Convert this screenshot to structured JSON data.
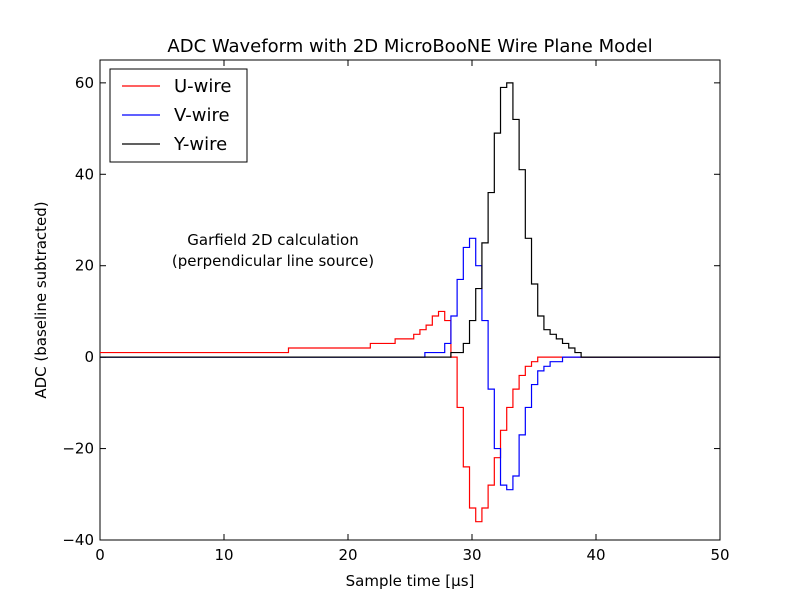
{
  "chart_data": {
    "type": "line",
    "title": "ADC Waveform with 2D MicroBooNE Wire Plane Model",
    "xlabel": "Sample time [μs]",
    "ylabel": "ADC (baseline subtracted)",
    "xlim": [
      0,
      50
    ],
    "ylim": [
      -40,
      65
    ],
    "xticks": [
      0,
      10,
      20,
      30,
      40,
      50
    ],
    "yticks": [
      -40,
      -20,
      0,
      20,
      40,
      60
    ],
    "grid": false,
    "legend_position": "top-left",
    "annotation": [
      "Garfield 2D calculation",
      "(perpendicular line source)"
    ],
    "series": [
      {
        "name": "U-wire",
        "color": "#ff0000",
        "steps": [
          [
            0,
            1
          ],
          [
            15.2,
            1
          ],
          [
            15.2,
            2
          ],
          [
            21.8,
            2
          ],
          [
            21.8,
            3
          ],
          [
            23.8,
            3
          ],
          [
            23.8,
            4
          ],
          [
            25.3,
            4
          ],
          [
            25.3,
            5
          ],
          [
            25.8,
            5
          ],
          [
            25.8,
            6
          ],
          [
            26.3,
            6
          ],
          [
            26.3,
            7
          ],
          [
            26.8,
            7
          ],
          [
            26.8,
            9
          ],
          [
            27.3,
            9
          ],
          [
            27.3,
            10
          ],
          [
            27.8,
            10
          ],
          [
            27.8,
            8
          ],
          [
            28.3,
            8
          ],
          [
            28.3,
            0
          ],
          [
            28.8,
            0
          ],
          [
            28.8,
            -11
          ],
          [
            29.3,
            -11
          ],
          [
            29.3,
            -24
          ],
          [
            29.8,
            -24
          ],
          [
            29.8,
            -33
          ],
          [
            30.3,
            -33
          ],
          [
            30.3,
            -36
          ],
          [
            30.8,
            -36
          ],
          [
            30.8,
            -33
          ],
          [
            31.3,
            -33
          ],
          [
            31.3,
            -28
          ],
          [
            31.8,
            -28
          ],
          [
            31.8,
            -22
          ],
          [
            32.3,
            -22
          ],
          [
            32.3,
            -16
          ],
          [
            32.8,
            -16
          ],
          [
            32.8,
            -11
          ],
          [
            33.3,
            -11
          ],
          [
            33.3,
            -7
          ],
          [
            33.8,
            -7
          ],
          [
            33.8,
            -4
          ],
          [
            34.3,
            -4
          ],
          [
            34.3,
            -2
          ],
          [
            34.8,
            -2
          ],
          [
            34.8,
            -1
          ],
          [
            35.3,
            -1
          ],
          [
            35.3,
            0
          ],
          [
            50,
            0
          ]
        ]
      },
      {
        "name": "V-wire",
        "color": "#0000ff",
        "steps": [
          [
            0,
            0
          ],
          [
            26.2,
            0
          ],
          [
            26.2,
            1
          ],
          [
            27.8,
            1
          ],
          [
            27.8,
            3
          ],
          [
            28.3,
            3
          ],
          [
            28.3,
            9
          ],
          [
            28.8,
            9
          ],
          [
            28.8,
            17
          ],
          [
            29.3,
            17
          ],
          [
            29.3,
            24
          ],
          [
            29.8,
            24
          ],
          [
            29.8,
            26
          ],
          [
            30.3,
            26
          ],
          [
            30.3,
            20
          ],
          [
            30.8,
            20
          ],
          [
            30.8,
            8
          ],
          [
            31.3,
            8
          ],
          [
            31.3,
            -7
          ],
          [
            31.8,
            -7
          ],
          [
            31.8,
            -20
          ],
          [
            32.3,
            -20
          ],
          [
            32.3,
            -28
          ],
          [
            32.8,
            -28
          ],
          [
            32.8,
            -29
          ],
          [
            33.3,
            -29
          ],
          [
            33.3,
            -26
          ],
          [
            33.8,
            -26
          ],
          [
            33.8,
            -17
          ],
          [
            34.3,
            -17
          ],
          [
            34.3,
            -11
          ],
          [
            34.8,
            -11
          ],
          [
            34.8,
            -6
          ],
          [
            35.3,
            -6
          ],
          [
            35.3,
            -3
          ],
          [
            35.8,
            -3
          ],
          [
            35.8,
            -2
          ],
          [
            36.3,
            -2
          ],
          [
            36.3,
            -1
          ],
          [
            37.3,
            -1
          ],
          [
            37.3,
            0
          ],
          [
            50,
            0
          ]
        ]
      },
      {
        "name": "Y-wire",
        "color": "#000000",
        "steps": [
          [
            0,
            0
          ],
          [
            28.3,
            0
          ],
          [
            28.3,
            1
          ],
          [
            29.3,
            1
          ],
          [
            29.3,
            3
          ],
          [
            29.8,
            3
          ],
          [
            29.8,
            8
          ],
          [
            30.3,
            8
          ],
          [
            30.3,
            15
          ],
          [
            30.8,
            15
          ],
          [
            30.8,
            25
          ],
          [
            31.3,
            25
          ],
          [
            31.3,
            36
          ],
          [
            31.8,
            36
          ],
          [
            31.8,
            49
          ],
          [
            32.3,
            49
          ],
          [
            32.3,
            59
          ],
          [
            32.8,
            59
          ],
          [
            32.8,
            60
          ],
          [
            33.3,
            60
          ],
          [
            33.3,
            52
          ],
          [
            33.8,
            52
          ],
          [
            33.8,
            41
          ],
          [
            34.3,
            41
          ],
          [
            34.3,
            26
          ],
          [
            34.8,
            26
          ],
          [
            34.8,
            16
          ],
          [
            35.3,
            16
          ],
          [
            35.3,
            9
          ],
          [
            35.8,
            9
          ],
          [
            35.8,
            6
          ],
          [
            36.3,
            6
          ],
          [
            36.3,
            5
          ],
          [
            36.8,
            5
          ],
          [
            36.8,
            4
          ],
          [
            37.3,
            4
          ],
          [
            37.3,
            3
          ],
          [
            37.8,
            3
          ],
          [
            37.8,
            2
          ],
          [
            38.3,
            2
          ],
          [
            38.3,
            1
          ],
          [
            38.8,
            1
          ],
          [
            38.8,
            0
          ],
          [
            50,
            0
          ]
        ]
      }
    ]
  }
}
